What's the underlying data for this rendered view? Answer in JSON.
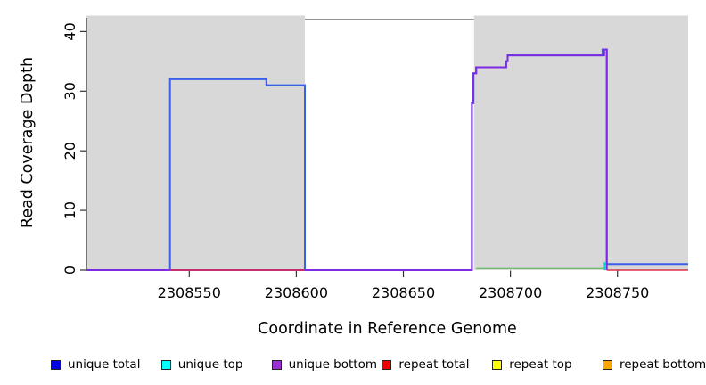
{
  "chart_data": {
    "type": "line",
    "step": true,
    "title": "",
    "xlabel": "Coordinate in Reference Genome",
    "ylabel": "Read Coverage Depth",
    "xlim": [
      2308502,
      2308783
    ],
    "ylim": [
      0,
      42
    ],
    "x_ticks": [
      2308550,
      2308600,
      2308650,
      2308700,
      2308750
    ],
    "y_ticks": [
      0,
      10,
      20,
      30,
      40
    ],
    "grid": false,
    "legend_position": "bottom",
    "background_color": "#ffffff",
    "axis_color": "#333333",
    "shaded_region_color": "#d8d8d8",
    "shaded_regions": [
      {
        "x0": 2308502,
        "x1": 2308604
      },
      {
        "x0": 2308683,
        "x1": 2308783
      }
    ],
    "top_line": {
      "y": 42,
      "color": "#4f4f4f"
    },
    "series": [
      {
        "name": "unique total",
        "color": "#3a5fe8",
        "width": 2,
        "segments": [
          [
            [
              2308502,
              0
            ],
            [
              2308541,
              0
            ],
            [
              2308541,
              32
            ],
            [
              2308586,
              32
            ],
            [
              2308586,
              31
            ],
            [
              2308604,
              31
            ],
            [
              2308604,
              0
            ],
            [
              2308682,
              0
            ],
            [
              2308682,
              28
            ],
            [
              2308682.7,
              28
            ],
            [
              2308682.7,
              33
            ],
            [
              2308684,
              33
            ],
            [
              2308684,
              34
            ],
            [
              2308698,
              34
            ],
            [
              2308698,
              35
            ],
            [
              2308698.7,
              35
            ],
            [
              2308698.7,
              36
            ],
            [
              2308743,
              36
            ],
            [
              2308743,
              37
            ],
            [
              2308745,
              37
            ],
            [
              2308745,
              1
            ],
            [
              2308783,
              1
            ]
          ]
        ]
      },
      {
        "name": "unique bottom",
        "color": "#7b2be2",
        "width": 2,
        "segments": [
          [
            [
              2308502,
              0
            ],
            [
              2308682,
              0
            ],
            [
              2308682,
              28
            ],
            [
              2308682.7,
              28
            ],
            [
              2308682.7,
              33
            ],
            [
              2308684,
              33
            ],
            [
              2308684,
              34
            ],
            [
              2308698,
              34
            ],
            [
              2308698,
              35
            ],
            [
              2308698.7,
              35
            ],
            [
              2308698.7,
              36
            ],
            [
              2308743.8,
              36
            ],
            [
              2308743.8,
              37
            ],
            [
              2308745,
              37
            ],
            [
              2308745,
              0
            ]
          ]
        ]
      },
      {
        "name": "unique top",
        "color": "#00d2dc",
        "width": 2,
        "segments": [
          [
            [
              2308744,
              0
            ],
            [
              2308744,
              1.3
            ]
          ]
        ]
      },
      {
        "name": "repeat total",
        "color": "#dc3248",
        "width": 1.4,
        "segments": [
          [
            [
              2308541,
              0
            ],
            [
              2308604,
              0
            ]
          ],
          [
            [
              2308745,
              0
            ],
            [
              2308783,
              0
            ]
          ]
        ]
      },
      {
        "name": "repeat top",
        "color": "#ffff00",
        "width": 1.4,
        "segments": []
      },
      {
        "name": "repeat bottom",
        "color": "#ffa500",
        "width": 1.4,
        "segments": []
      },
      {
        "name": "unlabeled green baseline",
        "color": "#6cbe6c",
        "width": 1.4,
        "segments": [
          [
            [
              2308684,
              0.25
            ],
            [
              2308744,
              0.25
            ]
          ]
        ]
      }
    ]
  },
  "legend": {
    "items": [
      {
        "label": "unique total",
        "color": "#0000e0"
      },
      {
        "label": "unique top",
        "color": "#00ffff"
      },
      {
        "label": "unique bottom",
        "color": "#9932cc"
      },
      {
        "label": "repeat total",
        "color": "#ee0000"
      },
      {
        "label": "repeat top",
        "color": "#ffff00"
      },
      {
        "label": "repeat bottom",
        "color": "#ffa500"
      }
    ]
  }
}
